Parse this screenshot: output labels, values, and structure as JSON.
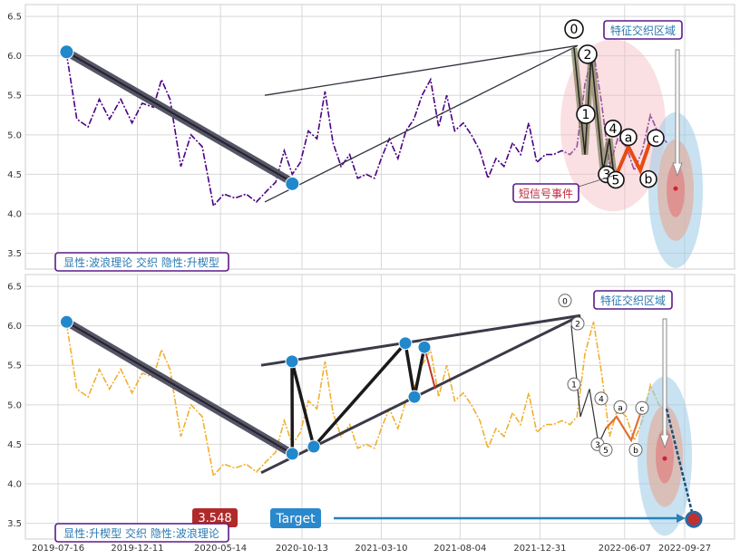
{
  "chart_data": {
    "type": "line",
    "x_ticks": [
      "2019-07-16",
      "2019-12-11",
      "2020-05-14",
      "2020-10-13",
      "2021-03-10",
      "2021-08-04",
      "2021-12-31",
      "2022-06-07",
      "2022-09-27"
    ],
    "y_ticks": [
      "3.5",
      "4.0",
      "4.5",
      "5.0",
      "5.5",
      "6.0",
      "6.5"
    ],
    "ylim": [
      3.3,
      6.65
    ],
    "grid": true,
    "colors": {
      "top_series": "#4b0082",
      "bottom_series": "#f0b030",
      "trend": "#333340",
      "box_border": "#5b1a8a",
      "annotation_text": "#2a7ab0",
      "signal_text": "#c0283c",
      "marker": "#2288cc",
      "target_box": "#2a88cc",
      "value_box": "#b02a2a"
    },
    "panels": [
      {
        "name": "top",
        "series": [
          {
            "x": [
              "2019-08-01",
              "2019-08-20",
              "2019-09-10",
              "2019-10-01",
              "2019-10-20",
              "2019-11-10",
              "2019-12-01",
              "2019-12-20",
              "2020-01-10",
              "2020-01-25",
              "2020-02-10",
              "2020-03-01",
              "2020-03-20",
              "2020-04-10",
              "2020-05-01",
              "2020-05-20",
              "2020-06-10",
              "2020-07-01",
              "2020-07-20",
              "2020-08-10",
              "2020-08-25",
              "2020-09-10",
              "2020-09-25",
              "2020-10-10",
              "2020-10-25",
              "2020-11-10",
              "2020-11-25",
              "2020-12-10",
              "2020-12-25",
              "2021-01-10",
              "2021-01-25",
              "2021-02-10",
              "2021-02-25",
              "2021-03-10",
              "2021-03-25",
              "2021-04-10",
              "2021-04-25",
              "2021-05-10",
              "2021-05-25",
              "2021-06-10",
              "2021-06-25",
              "2021-07-10",
              "2021-07-25",
              "2021-08-10",
              "2021-08-25",
              "2021-09-10",
              "2021-09-25",
              "2021-10-10",
              "2021-10-25",
              "2021-11-10",
              "2021-11-25",
              "2021-12-10",
              "2021-12-25",
              "2022-01-10",
              "2022-01-25",
              "2022-02-10",
              "2022-02-25",
              "2022-03-10",
              "2022-03-25",
              "2022-04-10",
              "2022-04-25",
              "2022-05-10",
              "2022-05-25",
              "2022-06-10",
              "2022-06-25",
              "2022-07-10",
              "2022-07-25",
              "2022-08-10",
              "2022-08-25"
            ],
            "y": [
              6.02,
              5.2,
              5.1,
              5.45,
              5.2,
              5.45,
              5.15,
              5.4,
              5.35,
              5.7,
              5.45,
              4.6,
              5.0,
              4.85,
              4.1,
              4.25,
              4.2,
              4.25,
              4.15,
              4.3,
              4.4,
              4.8,
              4.5,
              4.65,
              5.05,
              4.95,
              5.55,
              4.9,
              4.6,
              4.75,
              4.45,
              4.5,
              4.45,
              4.7,
              4.95,
              4.7,
              5.05,
              5.2,
              5.5,
              5.7,
              5.1,
              5.5,
              5.05,
              5.15,
              5.0,
              4.8,
              4.45,
              4.7,
              4.6,
              4.9,
              4.75,
              5.15,
              4.65,
              4.75,
              4.75,
              4.8,
              4.75,
              4.85,
              5.65,
              6.05,
              5.4,
              4.6,
              4.95,
              4.85,
              4.55,
              4.8,
              5.25,
              5.0,
              4.9
            ]
          }
        ],
        "wave_labels": [
          "0",
          "2",
          "1",
          "4",
          "a",
          "3",
          "5",
          "b",
          "c"
        ],
        "annotations": {
          "zone": "特征交织区域",
          "signal": "短信号事件",
          "caption": "显性:波浪理论 交织 隐性:升楔型"
        }
      },
      {
        "name": "bottom",
        "series": [
          {
            "x": [
              "2019-08-01",
              "2019-08-20",
              "2019-09-10",
              "2019-10-01",
              "2019-10-20",
              "2019-11-10",
              "2019-12-01",
              "2019-12-20",
              "2020-01-10",
              "2020-01-25",
              "2020-02-10",
              "2020-03-01",
              "2020-03-20",
              "2020-04-10",
              "2020-05-01",
              "2020-05-20",
              "2020-06-10",
              "2020-07-01",
              "2020-07-20",
              "2020-08-10",
              "2020-08-25",
              "2020-09-10",
              "2020-09-25",
              "2020-10-10",
              "2020-10-25",
              "2020-11-10",
              "2020-11-25",
              "2020-12-10",
              "2020-12-25",
              "2021-01-10",
              "2021-01-25",
              "2021-02-10",
              "2021-02-25",
              "2021-03-10",
              "2021-03-25",
              "2021-04-10",
              "2021-04-25",
              "2021-05-10",
              "2021-05-25",
              "2021-06-10",
              "2021-06-25",
              "2021-07-10",
              "2021-07-25",
              "2021-08-10",
              "2021-08-25",
              "2021-09-10",
              "2021-09-25",
              "2021-10-10",
              "2021-10-25",
              "2021-11-10",
              "2021-11-25",
              "2021-12-10",
              "2021-12-25",
              "2022-01-10",
              "2022-01-25",
              "2022-02-10",
              "2022-02-25",
              "2022-03-10",
              "2022-03-25",
              "2022-04-10",
              "2022-04-25",
              "2022-05-10",
              "2022-05-25",
              "2022-06-10",
              "2022-06-25",
              "2022-07-10",
              "2022-07-25",
              "2022-08-10",
              "2022-08-25"
            ],
            "y": [
              6.02,
              5.2,
              5.1,
              5.45,
              5.2,
              5.45,
              5.15,
              5.4,
              5.35,
              5.7,
              5.45,
              4.6,
              5.0,
              4.85,
              4.1,
              4.25,
              4.2,
              4.25,
              4.15,
              4.3,
              4.4,
              4.8,
              4.5,
              4.65,
              5.05,
              4.95,
              5.55,
              4.9,
              4.6,
              4.75,
              4.45,
              4.5,
              4.45,
              4.7,
              4.95,
              4.7,
              5.05,
              5.2,
              5.5,
              5.7,
              5.1,
              5.5,
              5.05,
              5.15,
              5.0,
              4.8,
              4.45,
              4.7,
              4.6,
              4.9,
              4.75,
              5.15,
              4.65,
              4.75,
              4.75,
              4.8,
              4.75,
              4.85,
              5.65,
              6.05,
              5.4,
              4.6,
              4.95,
              4.85,
              4.55,
              4.8,
              5.25,
              5.0,
              4.9
            ]
          }
        ],
        "wave_labels": [
          "0",
          "2",
          "1",
          "4",
          "a",
          "c",
          "3",
          "5",
          "b"
        ],
        "annotations": {
          "zone": "特征交织区域",
          "target_label": "Target",
          "target_value": "3.548",
          "caption": "显性:升楔型 交织 隐性:波浪理论"
        }
      }
    ]
  }
}
